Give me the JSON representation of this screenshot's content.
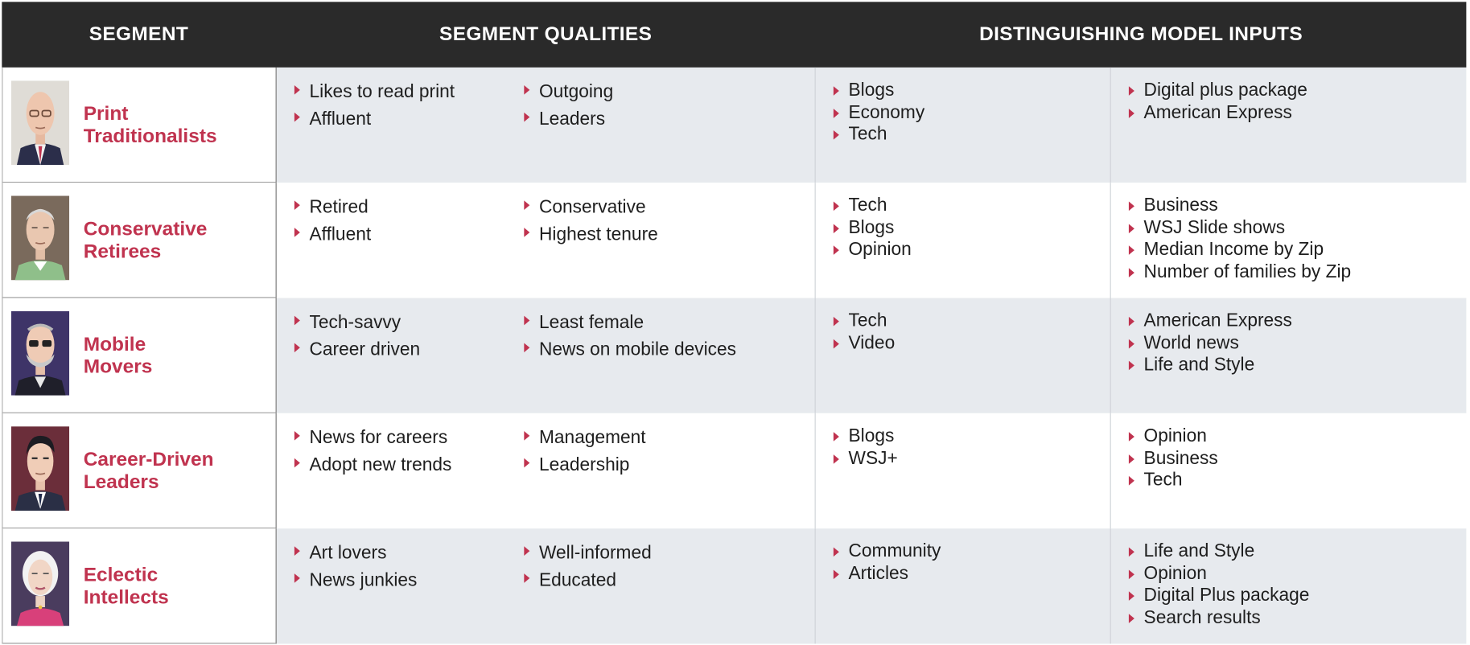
{
  "header": {
    "segment": "SEGMENT",
    "qualities": "SEGMENT QUALITIES",
    "model_inputs": "DISTINGUISHING MODEL INPUTS"
  },
  "colors": {
    "header_bg": "#2a2a2a",
    "accent": "#c0334f",
    "shade": "#e7eaee"
  },
  "rows": [
    {
      "name": "Print\nTraditionalists",
      "icon": "bald-man-with-glasses-portrait-icon",
      "qualities_left": [
        "Likes to read print",
        "Affluent"
      ],
      "qualities_right": [
        "Outgoing",
        "Leaders"
      ],
      "inputs_left": [
        "Blogs",
        "Economy",
        "Tech"
      ],
      "inputs_right": [
        "Digital plus package",
        "American Express"
      ]
    },
    {
      "name": "Conservative\nRetirees",
      "icon": "older-man-portrait-icon",
      "qualities_left": [
        "Retired",
        "Affluent"
      ],
      "qualities_right": [
        "Conservative",
        "Highest tenure"
      ],
      "inputs_left": [
        "Tech",
        "Blogs",
        "Opinion"
      ],
      "inputs_right": [
        "Business",
        "WSJ Slide shows",
        "Median Income by Zip",
        "Number of families by Zip"
      ]
    },
    {
      "name": "Mobile\nMovers",
      "icon": "man-with-glasses-portrait-icon",
      "qualities_left": [
        "Tech-savvy",
        "Career driven"
      ],
      "qualities_right": [
        "Least female",
        "News on mobile devices"
      ],
      "inputs_left": [
        "Tech",
        "Video"
      ],
      "inputs_right": [
        "American Express",
        "World news",
        "Life and Style"
      ]
    },
    {
      "name": "Career-Driven\nLeaders",
      "icon": "businessman-portrait-icon",
      "qualities_left": [
        "News for careers",
        "Adopt new trends"
      ],
      "qualities_right": [
        "Management",
        "Leadership"
      ],
      "inputs_left": [
        "Blogs",
        "WSJ+"
      ],
      "inputs_right": [
        "Opinion",
        "Business",
        "Tech"
      ]
    },
    {
      "name": "Eclectic\nIntellects",
      "icon": "white-haired-woman-portrait-icon",
      "qualities_left": [
        "Art lovers",
        "News junkies"
      ],
      "qualities_right": [
        "Well-informed",
        "Educated"
      ],
      "inputs_left": [
        "Community",
        "Articles"
      ],
      "inputs_right": [
        "Life and Style",
        "Opinion",
        "Digital Plus package",
        "Search results"
      ]
    }
  ]
}
